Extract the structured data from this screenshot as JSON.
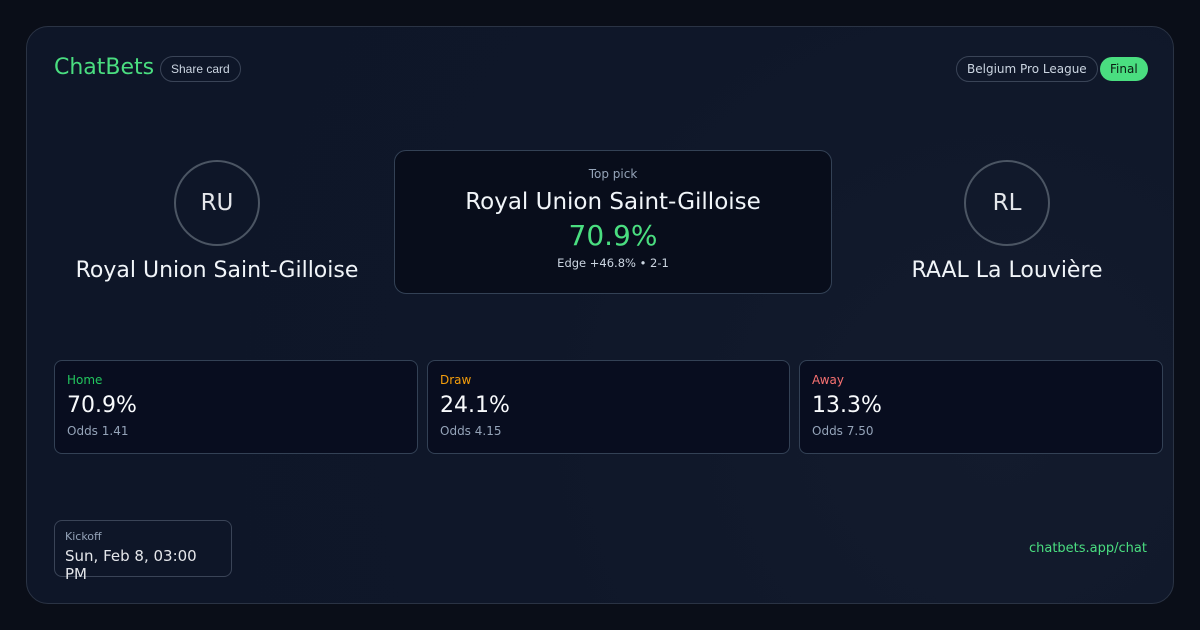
{
  "brand": "ChatBets",
  "share_label": "Share card",
  "league": "Belgium Pro League",
  "status": "Final",
  "home": {
    "initials": "RU",
    "name": "Royal Union Saint-Gilloise"
  },
  "away": {
    "initials": "RL",
    "name": "RAAL La Louvière"
  },
  "top_pick": {
    "label": "Top pick",
    "team": "Royal Union Saint-Gilloise",
    "probability": "70.9%",
    "detail": "Edge +46.8% • 2-1"
  },
  "outcomes": [
    {
      "label": "Home",
      "value": "70.9%",
      "odds": "Odds 1.41",
      "color": "#22c55e"
    },
    {
      "label": "Draw",
      "value": "24.1%",
      "odds": "Odds 4.15",
      "color": "#f59e0b"
    },
    {
      "label": "Away",
      "value": "13.3%",
      "odds": "Odds 7.50",
      "color": "#f87171"
    }
  ],
  "kickoff": {
    "label": "Kickoff",
    "value": "Sun, Feb 8, 03:00 PM"
  },
  "url": "chatbets.app/chat"
}
